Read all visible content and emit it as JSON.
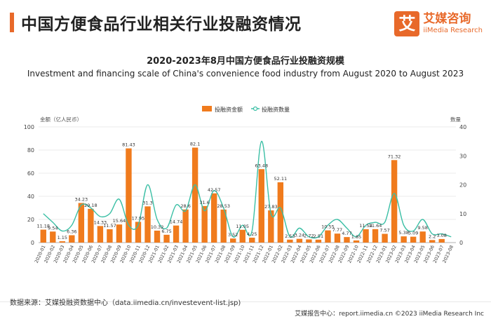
{
  "header": {
    "title": "中国方便食品行业相关行业投融资情况",
    "logo_mark": "艾",
    "logo_cn": "艾媒咨询",
    "logo_en": "iiMedia Research"
  },
  "chart_data": {
    "type": "bar+line",
    "title": "2020-2023年8月中国方便食品行业投融资规模",
    "subtitle": "Investment and financing scale of China's convenience food industry from August 2020 to August 2023",
    "y_left_label": "金额（亿人民币）",
    "y_right_label": "数量",
    "y_left_lim": [
      0,
      100
    ],
    "y_right_lim": [
      0,
      40
    ],
    "y_left_ticks": [
      "0",
      "20",
      "40",
      "60",
      "80",
      "100"
    ],
    "y_right_ticks": [
      "0",
      "10",
      "20",
      "30",
      "40"
    ],
    "legend": {
      "position": "top-center",
      "bar_name": "投融资金额",
      "line_name": "投融资数量"
    },
    "categories": [
      "2020-01",
      "2020-02",
      "2020-03",
      "2020-04",
      "2020-05",
      "2020-06",
      "2020-07",
      "2020-08",
      "2020-09",
      "2020-10",
      "2020-11",
      "2020-12",
      "2021-01",
      "2021-02",
      "2021-03",
      "2021-04",
      "2021-05",
      "2021-06",
      "2021-07",
      "2021-08",
      "2021-09",
      "2021-10",
      "2021-11",
      "2021-12",
      "2022-01",
      "2022-02",
      "2022-03",
      "2022-04",
      "2022-05",
      "2022-06",
      "2022-07",
      "2022-08",
      "2022-09",
      "2022-10",
      "2022-11",
      "2022-12",
      "2023-01",
      "2023-02",
      "2023-03",
      "2023-04",
      "2023-05",
      "2023-06",
      "2023-07",
      "2023-08"
    ],
    "amount": [
      11.18,
      9.54,
      1.15,
      6.36,
      34.23,
      29.18,
      14.33,
      11.57,
      15.64,
      81.43,
      17.95,
      31.3,
      10.32,
      6.75,
      14.74,
      28.6,
      82.1,
      31.6,
      42.57,
      28.53,
      3.52,
      11.05,
      4.25,
      63.48,
      27.83,
      52.11,
      2.53,
      3.24,
      2.72,
      2.51,
      10.55,
      7.77,
      4.77,
      1.85,
      11.54,
      11.64,
      7.57,
      71.32,
      5.38,
      5.09,
      9.58,
      2.2,
      3.08,
      0
    ],
    "amount_labels": [
      "11.18",
      "9.54",
      "1.15",
      "6.36",
      "34.23",
      "29.18",
      "14.33",
      "11.57",
      "15.64",
      "81.43",
      "17.95",
      "31.3",
      "10.32",
      "6.75",
      "14.74",
      "28.6",
      "82.1",
      "31.6",
      "42.57",
      "28.53",
      "3.52",
      "11.05",
      "4.25",
      "63.48",
      "27.83",
      "52.11",
      "2.53",
      "3.24",
      "2.72",
      "2.51",
      "10.55",
      "7.77",
      "4.77",
      "1.85",
      "11.54",
      "11.64",
      "7.57",
      "71.32",
      "5.38",
      "5.09",
      "9.58",
      "2.2",
      "3.08",
      ""
    ],
    "count": [
      10,
      7,
      4,
      6,
      13,
      12,
      9,
      10,
      15,
      6,
      6,
      20,
      8,
      5,
      13,
      11,
      20,
      11,
      18,
      12,
      2,
      6,
      4,
      35,
      10,
      12,
      2,
      5,
      2,
      2,
      6,
      8,
      5,
      2,
      6,
      7,
      7,
      17,
      6,
      4,
      8,
      3,
      3,
      2
    ],
    "bar_color": "#f07b1d",
    "line_color": "#3bbfa5"
  },
  "footer": {
    "source": "数据来源：艾媒投融资数据中心（data.iimedia.cn/investevent-list.jsp)",
    "right": "艾媒报告中心：report.iimedia.cn ©2023 iiMedia Research Inc"
  }
}
